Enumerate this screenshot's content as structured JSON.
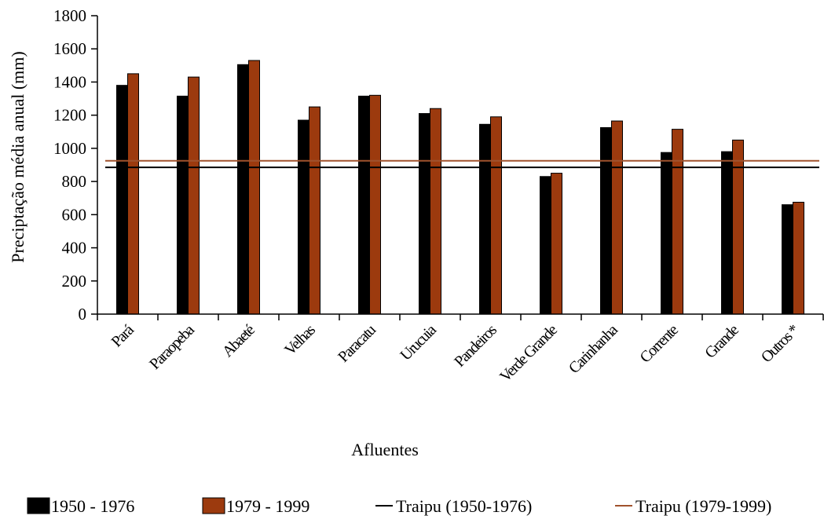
{
  "chart_data": {
    "type": "bar",
    "title": "",
    "xlabel": "Afluentes",
    "ylabel": "Preciptação média anual (mm)",
    "ylim": [
      0,
      1800
    ],
    "yticks": [
      0,
      200,
      400,
      600,
      800,
      1000,
      1200,
      1400,
      1600,
      1800
    ],
    "grid": false,
    "legend_position": "bottom",
    "categories": [
      "Pará",
      "Paraopeba",
      "Abaeté",
      "Velhas",
      "Paracatu",
      "Urucuia",
      "Pandeiros",
      "Verde Grande",
      "Carinhanha",
      "Corrente",
      "Grande",
      "Outros *"
    ],
    "series": [
      {
        "name": "1950 - 1976",
        "color": "#000000",
        "values": [
          1380,
          1315,
          1505,
          1170,
          1315,
          1210,
          1145,
          830,
          1125,
          975,
          980,
          660
        ]
      },
      {
        "name": "1979 - 1999",
        "color": "#9c3a0e",
        "values": [
          1450,
          1430,
          1530,
          1250,
          1320,
          1240,
          1190,
          850,
          1165,
          1115,
          1050,
          675
        ]
      }
    ],
    "reference_lines": [
      {
        "name": "Traipu (1950-1976)",
        "color": "#000000",
        "value": 885
      },
      {
        "name": "Traipu (1979-1999)",
        "color": "#a0522d",
        "value": 925
      }
    ]
  }
}
